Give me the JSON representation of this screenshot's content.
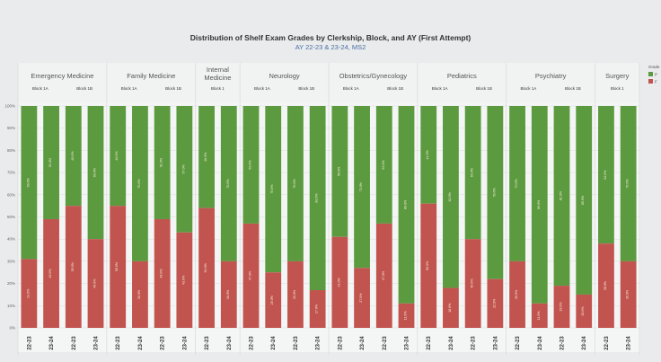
{
  "chart_data": {
    "type": "bar",
    "stacked": true,
    "percent": true,
    "title": "Distribution of Shelf Exam Grades by Clerkship, Block, and AY (First Attempt)",
    "subtitle": "AY 22-23 & 23-24, MS2",
    "ylim": [
      0,
      100
    ],
    "yticks": [
      "0%",
      "10%",
      "20%",
      "30%",
      "40%",
      "50%",
      "60%",
      "70%",
      "80%",
      "90%",
      "100%"
    ],
    "grid": true,
    "legend": {
      "title": "Grade",
      "placement": "right",
      "entries": [
        "P",
        "F"
      ]
    },
    "colors": {
      "green": "#5c9a40",
      "red": "#c25450"
    },
    "groups": [
      {
        "clerkship": "Emergency Medicine",
        "blocks": [
          {
            "block": "Block 1A",
            "years": [
              "22-23",
              "23-24"
            ],
            "red": [
              31,
              49
            ]
          },
          {
            "block": "Block 1B",
            "years": [
              "22-23",
              "23-24"
            ],
            "red": [
              55,
              40
            ]
          }
        ]
      },
      {
        "clerkship": "Family Medicine",
        "blocks": [
          {
            "block": "Block 1A",
            "years": [
              "22-23",
              "23-24"
            ],
            "red": [
              55,
              30
            ]
          },
          {
            "block": "Block 1B",
            "years": [
              "22-23",
              "23-24"
            ],
            "red": [
              49,
              43
            ]
          }
        ]
      },
      {
        "clerkship": "Internal Medicine",
        "blocks": [
          {
            "block": "Block 1",
            "years": [
              "22-23",
              "23-24"
            ],
            "red": [
              54,
              30
            ]
          }
        ]
      },
      {
        "clerkship": "Neurology",
        "blocks": [
          {
            "block": "Block 1A",
            "years": [
              "22-23",
              "23-24"
            ],
            "red": [
              47,
              25
            ]
          },
          {
            "block": "Block 1B",
            "years": [
              "22-23",
              "23-24"
            ],
            "red": [
              30,
              17
            ]
          }
        ]
      },
      {
        "clerkship": "Obstetrics/Gynecology",
        "blocks": [
          {
            "block": "Block 1A",
            "years": [
              "22-23",
              "23-24"
            ],
            "red": [
              41,
              27
            ]
          },
          {
            "block": "Block 1B",
            "years": [
              "22-23",
              "23-24"
            ],
            "red": [
              47,
              11
            ]
          }
        ]
      },
      {
        "clerkship": "Pediatrics",
        "blocks": [
          {
            "block": "Block 1A",
            "years": [
              "22-23",
              "23-24"
            ],
            "red": [
              56,
              18
            ]
          },
          {
            "block": "Block 1B",
            "years": [
              "22-23",
              "23-24"
            ],
            "red": [
              40,
              22
            ]
          }
        ]
      },
      {
        "clerkship": "Psychiatry",
        "blocks": [
          {
            "block": "Block 1A",
            "years": [
              "22-23",
              "23-24"
            ],
            "red": [
              30,
              11
            ]
          },
          {
            "block": "Block 1B",
            "years": [
              "22-23",
              "23-24"
            ],
            "red": [
              19,
              15
            ]
          }
        ]
      },
      {
        "clerkship": "Surgery",
        "blocks": [
          {
            "block": "Block 1",
            "years": [
              "22-23",
              "23-24"
            ],
            "red": [
              38,
              30
            ]
          }
        ]
      }
    ]
  }
}
